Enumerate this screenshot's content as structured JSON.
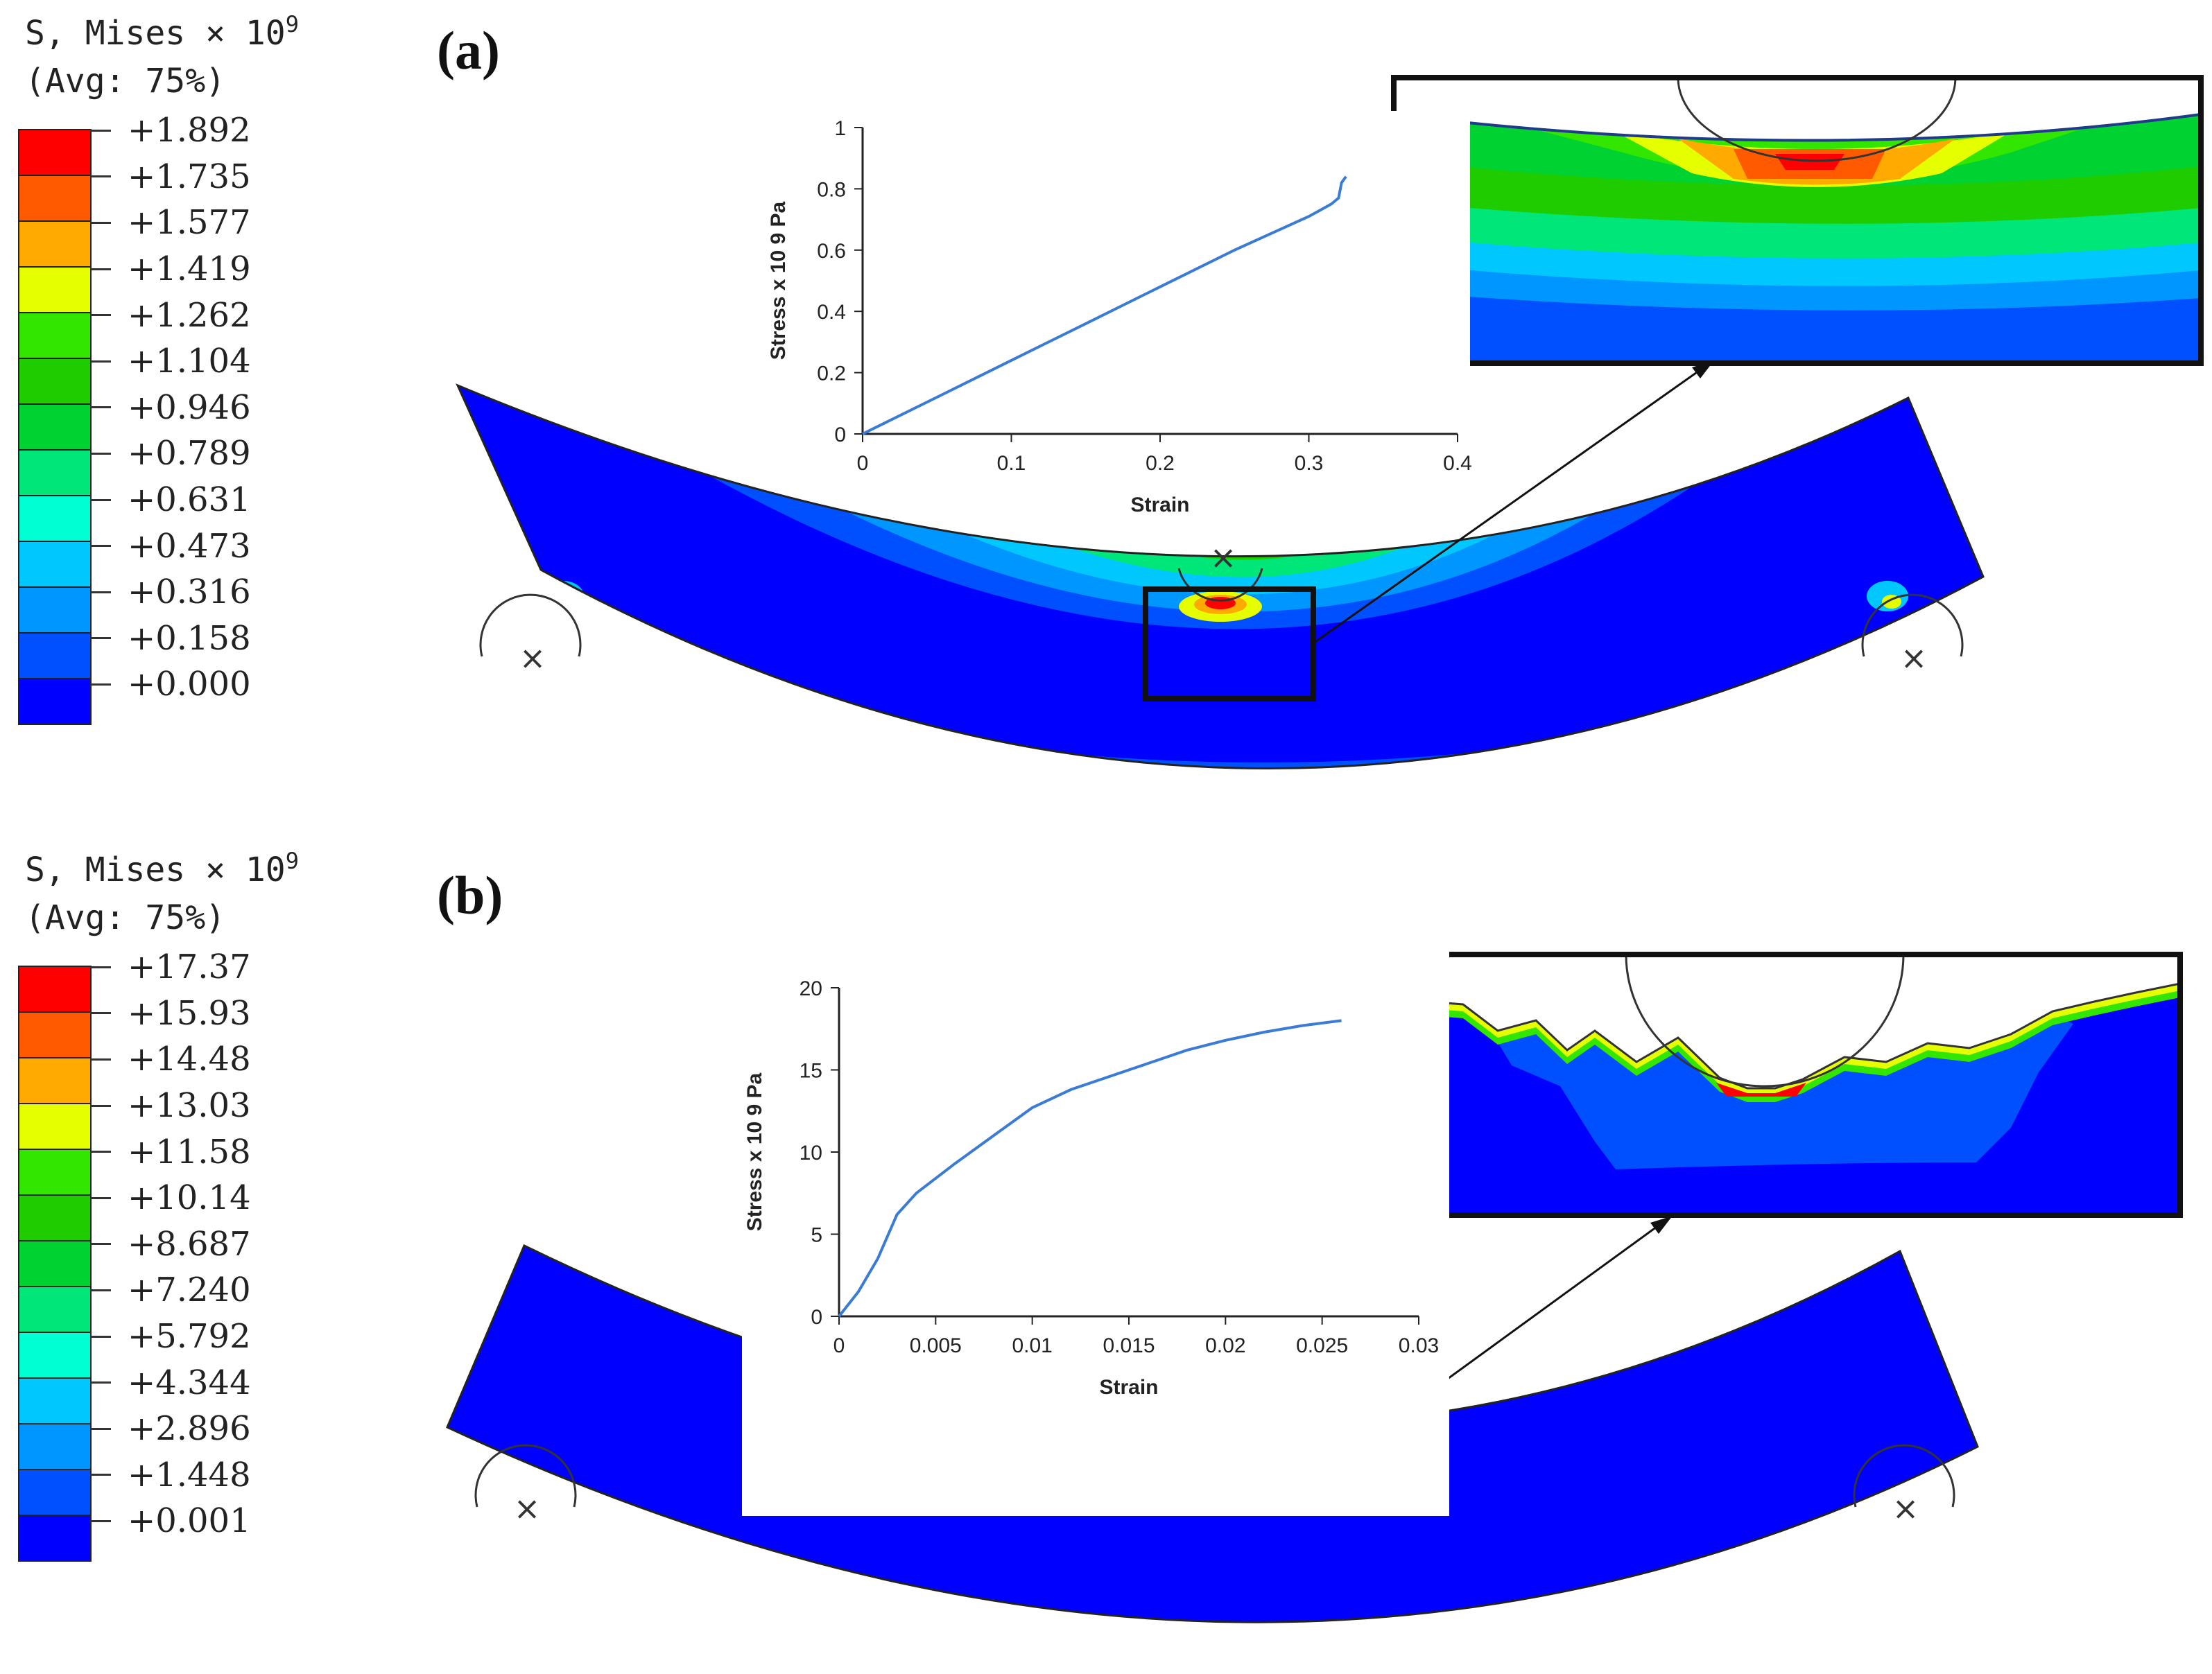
{
  "panels": [
    {
      "label": "(a)",
      "legend": {
        "title_line1": "S, Mises × 10",
        "title_exp": "9",
        "title_line2": "(Avg: 75%)",
        "values": [
          "+1.892",
          "+1.735",
          "+1.577",
          "+1.419",
          "+1.262",
          "+1.104",
          "+0.946",
          "+0.789",
          "+0.631",
          "+0.473",
          "+0.316",
          "+0.158",
          "+0.000"
        ],
        "colors": [
          "#ff0000",
          "#ff5a00",
          "#ffaa00",
          "#e6ff00",
          "#32e600",
          "#1ecc00",
          "#00d232",
          "#00e678",
          "#00ffd2",
          "#00c8ff",
          "#0096ff",
          "#0050ff",
          "#0000ff"
        ]
      },
      "chart_data": {
        "type": "line",
        "xlabel": "Strain",
        "ylabel": "Stress x 10 9 Pa",
        "xlim": [
          0,
          0.4
        ],
        "ylim": [
          0,
          1
        ],
        "xticks": [
          "0",
          "0.1",
          "0.2",
          "0.3",
          "0.4"
        ],
        "yticks": [
          "0",
          "0.2",
          "0.4",
          "0.6",
          "0.8",
          "1"
        ],
        "series": [
          {
            "x": [
              0,
              0.05,
              0.1,
              0.15,
              0.2,
              0.25,
              0.3,
              0.315,
              0.32,
              0.322,
              0.325
            ],
            "y": [
              0,
              0.12,
              0.24,
              0.36,
              0.48,
              0.6,
              0.71,
              0.75,
              0.77,
              0.82,
              0.84
            ]
          }
        ],
        "line_color": "#3a7bd5"
      }
    },
    {
      "label": "(b)",
      "legend": {
        "title_line1": "S, Mises × 10",
        "title_exp": "9",
        "title_line2": "(Avg: 75%)",
        "values": [
          "+17.37",
          "+15.93",
          "+14.48",
          "+13.03",
          "+11.58",
          "+10.14",
          "+8.687",
          "+7.240",
          "+5.792",
          "+4.344",
          "+2.896",
          "+1.448",
          "+0.001"
        ],
        "colors": [
          "#ff0000",
          "#ff5a00",
          "#ffaa00",
          "#e6ff00",
          "#32e600",
          "#1ecc00",
          "#00d232",
          "#00e678",
          "#00ffd2",
          "#00c8ff",
          "#0096ff",
          "#0050ff",
          "#0000ff"
        ]
      },
      "chart_data": {
        "type": "line",
        "xlabel": "Strain",
        "ylabel": "Stress x 10 9 Pa",
        "xlim": [
          0,
          0.03
        ],
        "ylim": [
          0,
          20
        ],
        "xticks": [
          "0",
          "0.005",
          "0.01",
          "0.015",
          "0.02",
          "0.025",
          "0.03"
        ],
        "yticks": [
          "0",
          "5",
          "10",
          "15",
          "20"
        ],
        "series": [
          {
            "x": [
              0,
              0.001,
              0.002,
              0.003,
              0.004,
              0.006,
              0.008,
              0.01,
              0.012,
              0.015,
              0.018,
              0.02,
              0.022,
              0.024,
              0.026
            ],
            "y": [
              0,
              1.5,
              3.5,
              6.2,
              7.5,
              9.3,
              11.0,
              12.7,
              13.8,
              15.0,
              16.2,
              16.8,
              17.3,
              17.7,
              18.0
            ]
          }
        ],
        "line_color": "#3a7bd5"
      }
    }
  ]
}
